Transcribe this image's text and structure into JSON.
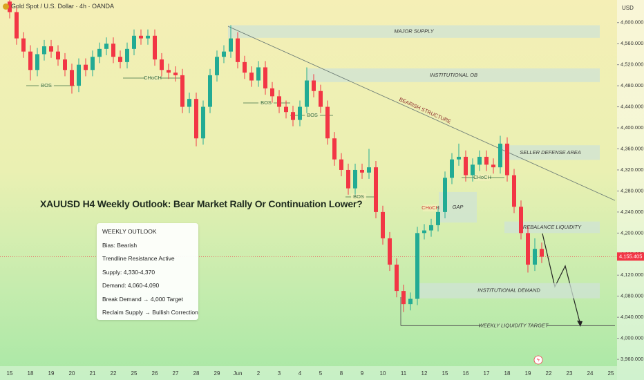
{
  "chart_data": {
    "type": "candlestick",
    "title": "Gold Spot / U.S. Dollar · 4h · OANDA",
    "currency": "USD",
    "headline": "XAUUSD H4 Weekly Outlook: Bear Market Rally Or Continuation Lower?",
    "categories": [
      "15",
      null,
      null,
      "18",
      null,
      null,
      "19",
      null,
      null,
      "20",
      null,
      null,
      "21",
      null,
      null,
      "22",
      null,
      null,
      "25",
      null,
      null,
      "26",
      null,
      null,
      "27",
      null,
      null,
      "28",
      null,
      null,
      "29",
      null,
      null,
      "Jun",
      null,
      null,
      "2",
      null,
      null,
      "3",
      null,
      null,
      "4",
      null,
      null,
      "5",
      null,
      null,
      "8",
      null,
      null,
      "9",
      null,
      null,
      "10",
      null,
      null,
      "11",
      null,
      null,
      "12",
      null,
      null,
      "15",
      null,
      null,
      "16",
      null,
      null,
      "17",
      null,
      null,
      "18",
      null,
      null,
      "19",
      null,
      null,
      "22",
      null,
      null,
      "23",
      null,
      null,
      "24",
      null,
      null,
      "25",
      null,
      null
    ],
    "open": [
      4640,
      4620,
      4570,
      4545,
      4510,
      4540,
      4555,
      4545,
      4530,
      4510,
      4480,
      4520,
      4510,
      4535,
      4550,
      4560,
      4535,
      4525,
      4550,
      4575,
      4570,
      4575,
      4530,
      4510,
      4505,
      4500,
      4440,
      4455,
      4380,
      4440,
      4500,
      4535,
      4545,
      4570,
      4525,
      4505,
      4490,
      4515,
      4475,
      4460,
      4440,
      4430,
      4415,
      4440,
      4490,
      4470,
      4440,
      4380,
      4340,
      4320,
      4285,
      4320,
      4315,
      4325,
      4240,
      4190,
      4140,
      4090,
      4065,
      4075,
      4200,
      4205,
      4215,
      4240,
      4305,
      4340,
      4345,
      4310,
      4330,
      4345,
      4330,
      4325,
      4370,
      4310,
      4250,
      4200,
      4140,
      4170,
      null,
      null,
      null,
      null,
      null,
      null,
      null,
      null,
      null,
      null,
      null,
      null
    ],
    "high": [
      4652,
      4632,
      4582,
      4557,
      4552,
      4567,
      4567,
      4557,
      4542,
      4522,
      4532,
      4532,
      4547,
      4562,
      4572,
      4572,
      4547,
      4562,
      4587,
      4587,
      4587,
      4587,
      4542,
      4522,
      4517,
      4512,
      4467,
      4467,
      4452,
      4512,
      4547,
      4557,
      4595,
      4582,
      4537,
      4517,
      4527,
      4527,
      4487,
      4472,
      4452,
      4442,
      4452,
      4515,
      4502,
      4482,
      4452,
      4392,
      4352,
      4332,
      4332,
      4332,
      4360,
      4337,
      4252,
      4202,
      4152,
      4102,
      4087,
      4212,
      4217,
      4227,
      4252,
      4317,
      4352,
      4370,
      4357,
      4342,
      4357,
      4357,
      4342,
      4385,
      4382,
      4322,
      4262,
      4212,
      4190,
      4182,
      null,
      null,
      null,
      null,
      null,
      null,
      null,
      null,
      null,
      null,
      null,
      null
    ],
    "low": [
      4608,
      4558,
      4533,
      4490,
      4498,
      4528,
      4533,
      4518,
      4498,
      4465,
      4468,
      4498,
      4498,
      4523,
      4538,
      4523,
      4513,
      4513,
      4538,
      4558,
      4558,
      4518,
      4498,
      4493,
      4488,
      4428,
      4428,
      4365,
      4368,
      4428,
      4488,
      4523,
      4533,
      4513,
      4493,
      4478,
      4478,
      4463,
      4448,
      4428,
      4418,
      4403,
      4403,
      4428,
      4458,
      4428,
      4368,
      4328,
      4308,
      4273,
      4273,
      4303,
      4303,
      4228,
      4178,
      4128,
      4078,
      4050,
      4053,
      4063,
      4188,
      4193,
      4203,
      4228,
      4293,
      4328,
      4298,
      4298,
      4318,
      4318,
      4313,
      4313,
      4298,
      4238,
      4188,
      4125,
      4128,
      4143,
      null,
      null,
      null,
      null,
      null,
      null,
      null,
      null,
      null,
      null,
      null,
      null
    ],
    "close": [
      4620,
      4570,
      4545,
      4510,
      4540,
      4555,
      4545,
      4530,
      4510,
      4480,
      4520,
      4510,
      4535,
      4550,
      4560,
      4535,
      4525,
      4550,
      4575,
      4570,
      4575,
      4530,
      4510,
      4505,
      4500,
      4440,
      4455,
      4380,
      4440,
      4500,
      4535,
      4545,
      4570,
      4525,
      4505,
      4490,
      4515,
      4475,
      4460,
      4440,
      4430,
      4415,
      4440,
      4490,
      4470,
      4440,
      4380,
      4340,
      4320,
      4285,
      4320,
      4315,
      4325,
      4240,
      4190,
      4140,
      4090,
      4065,
      4075,
      4200,
      4205,
      4215,
      4240,
      4305,
      4340,
      4345,
      4310,
      4330,
      4345,
      4330,
      4325,
      4370,
      4310,
      4250,
      4200,
      4140,
      4170,
      4155,
      null,
      null,
      null,
      null,
      null,
      null,
      null,
      null,
      null,
      null,
      null,
      null
    ],
    "up_color": "#22ab94",
    "down_color": "#f23645",
    "ylim": [
      3947,
      4643
    ],
    "yticks": [
      {
        "value": 4600,
        "label": "4,600.000"
      },
      {
        "value": 4560,
        "label": "4,560.000"
      },
      {
        "value": 4520,
        "label": "4,520.000"
      },
      {
        "value": 4480,
        "label": "4,480.000"
      },
      {
        "value": 4440,
        "label": "4,440.000"
      },
      {
        "value": 4400,
        "label": "4,400.000"
      },
      {
        "value": 4360,
        "label": "4,360.000"
      },
      {
        "value": 4320,
        "label": "4,320.000"
      },
      {
        "value": 4280,
        "label": "4,280.000"
      },
      {
        "value": 4240,
        "label": "4,240.000"
      },
      {
        "value": 4200,
        "label": "4,200.000"
      },
      {
        "value": 4160,
        "label": "4,160.000"
      },
      {
        "value": 4120,
        "label": "4,120.000"
      },
      {
        "value": 4080,
        "label": "4,080.000"
      },
      {
        "value": 4040,
        "label": "4,040.000"
      },
      {
        "value": 4000,
        "label": "4,000.000"
      },
      {
        "value": 3960,
        "label": "3,960.000"
      }
    ],
    "grid": false,
    "last_price": {
      "value": 4155.405,
      "label": "4,155.405"
    },
    "zones": [
      {
        "label": "MAJOR SUPPLY",
        "from": 4571,
        "to": 4595
      },
      {
        "label": "INSTITUTIONAL OB",
        "from": 4487,
        "to": 4513
      },
      {
        "label": "SELLER DEFENSE AREA",
        "from": 4339,
        "to": 4367
      },
      {
        "label": "GAP",
        "from": 4220,
        "to": 4278
      },
      {
        "label": "REBALANCE LIQUIDITY",
        "from": 4200,
        "to": 4222
      },
      {
        "label": "INSTITUTIONAL DEMAND",
        "from": 4076,
        "to": 4105
      }
    ],
    "trendline": {
      "label": "BEARISH STRUCTURE",
      "from": 4593,
      "to": 4262
    },
    "target": {
      "label": "WEEKLY LIQUIDITY TARGET",
      "value": 4024
    },
    "structure_labels": [
      "BOS",
      "CHoCH",
      "BOS",
      "BOS",
      "BOS",
      "CHoCH",
      "CHoCH"
    ],
    "outlook": {
      "title": "WEEKLY OUTLOOK",
      "lines": [
        "Bias: Bearish",
        "Trendline Resistance Active",
        "Supply: 4,330-4,370",
        "Demand: 4,060-4,090",
        "Break Demand → 4,000 Target",
        "Reclaim Supply → Bullish Correction"
      ]
    }
  }
}
